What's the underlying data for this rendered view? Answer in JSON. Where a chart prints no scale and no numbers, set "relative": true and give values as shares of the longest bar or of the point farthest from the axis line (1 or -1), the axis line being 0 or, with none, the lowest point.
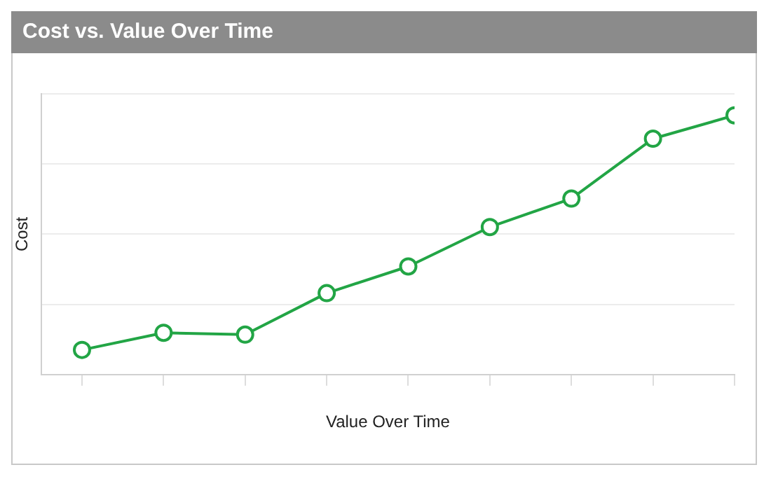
{
  "chart_data": {
    "type": "line",
    "title": "Cost vs. Value Over Time",
    "xlabel": "Value Over Time",
    "ylabel": "Cost",
    "relative": true,
    "categories": [
      null,
      null,
      null,
      null,
      null,
      null,
      null,
      null,
      null
    ],
    "series": [
      {
        "color": "#22a545",
        "values": [
          0.095,
          0.161,
          0.154,
          0.314,
          0.417,
          0.569,
          0.679,
          0.91,
          1
        ]
      }
    ],
    "grid": "y",
    "legend": false,
    "marker": "circle",
    "line_style": "solid"
  }
}
